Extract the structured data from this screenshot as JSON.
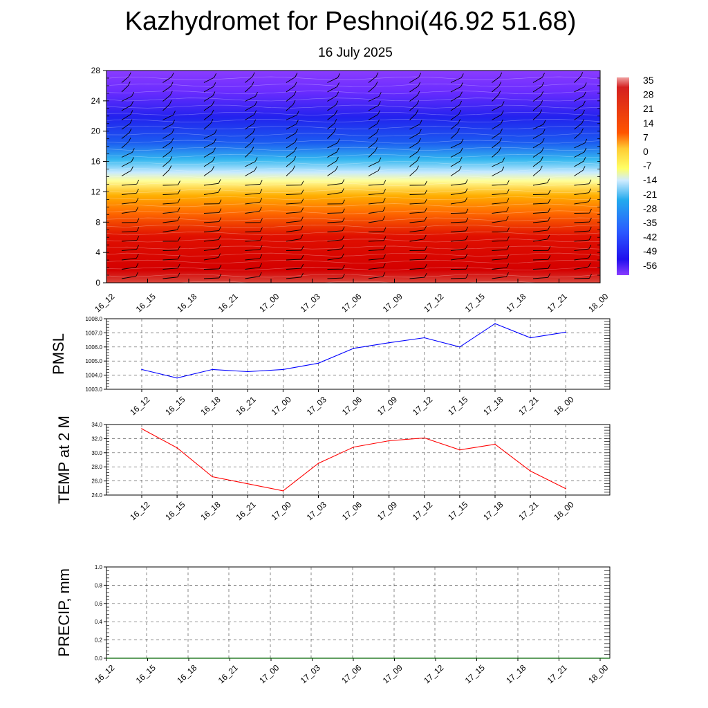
{
  "title": "Kazhydromet for Peshnoi(46.92 51.68)",
  "subtitle": "16 July 2025",
  "colors": {
    "pmsl_line": "#0000ff",
    "temp_line": "#ff0000",
    "precip_line": "#006400"
  },
  "chart_data": [
    {
      "type": "heatmap",
      "title": "",
      "xlabel": "",
      "ylabel": "",
      "x_categories": [
        "16_12",
        "16_15",
        "16_18",
        "16_21",
        "17_00",
        "17_03",
        "17_06",
        "17_09",
        "17_12",
        "17_15",
        "17_18",
        "17_21",
        "18_00"
      ],
      "y_ticks": [
        "0",
        "4",
        "8",
        "12",
        "16",
        "20",
        "24",
        "28"
      ],
      "ylim": [
        0,
        28
      ],
      "colorbar_labels": [
        "35",
        "28",
        "21",
        "14",
        "7",
        "0",
        "-7",
        "-14",
        "-21",
        "-28",
        "-35",
        "-42",
        "-49",
        "-56"
      ],
      "colorbar_range": [
        -56,
        35
      ],
      "wind_barbs": true
    },
    {
      "type": "line",
      "ylabel": "PMSL",
      "x_categories": [
        "16_12",
        "16_15",
        "16_18",
        "16_21",
        "17_00",
        "17_03",
        "17_06",
        "17_09",
        "17_12",
        "17_15",
        "17_18",
        "17_21",
        "18_00"
      ],
      "y_ticks": [
        "1003.0",
        "1004.0",
        "1005.0",
        "1006.0",
        "1007.0",
        "1008.0"
      ],
      "ylim": [
        1003.0,
        1008.0
      ],
      "series": [
        {
          "values": [
            1004.4,
            1003.8,
            1004.4,
            1004.25,
            1004.4,
            1004.85,
            1005.9,
            1006.3,
            1006.65,
            1006.0,
            1007.65,
            1006.65,
            1007.05
          ]
        }
      ],
      "grid": true
    },
    {
      "type": "line",
      "ylabel": "TEMP at 2 M",
      "x_categories": [
        "16_12",
        "16_15",
        "16_18",
        "16_21",
        "17_00",
        "17_03",
        "17_06",
        "17_09",
        "17_12",
        "17_15",
        "17_18",
        "17_21",
        "18_00"
      ],
      "y_ticks": [
        "24.0",
        "26.0",
        "28.0",
        "30.0",
        "32.0",
        "34.0"
      ],
      "ylim": [
        24.0,
        34.0
      ],
      "series": [
        {
          "values": [
            33.4,
            30.7,
            26.6,
            25.6,
            24.6,
            28.5,
            30.8,
            31.7,
            32.1,
            30.4,
            31.2,
            27.4,
            24.9
          ]
        }
      ],
      "grid": true
    },
    {
      "type": "line",
      "ylabel": "PRECIP, mm",
      "x_categories": [
        "16_12",
        "16_15",
        "16_18",
        "16_21",
        "17_00",
        "17_03",
        "17_06",
        "17_09",
        "17_12",
        "17_15",
        "17_18",
        "17_21",
        "18_00"
      ],
      "y_ticks": [
        "0.0",
        "0.2",
        "0.4",
        "0.6",
        "0.8",
        "1.0"
      ],
      "ylim": [
        0.0,
        1.0
      ],
      "series": [
        {
          "values": [
            0,
            0,
            0,
            0,
            0,
            0,
            0,
            0,
            0,
            0,
            0,
            0
          ]
        }
      ],
      "grid": true
    }
  ]
}
